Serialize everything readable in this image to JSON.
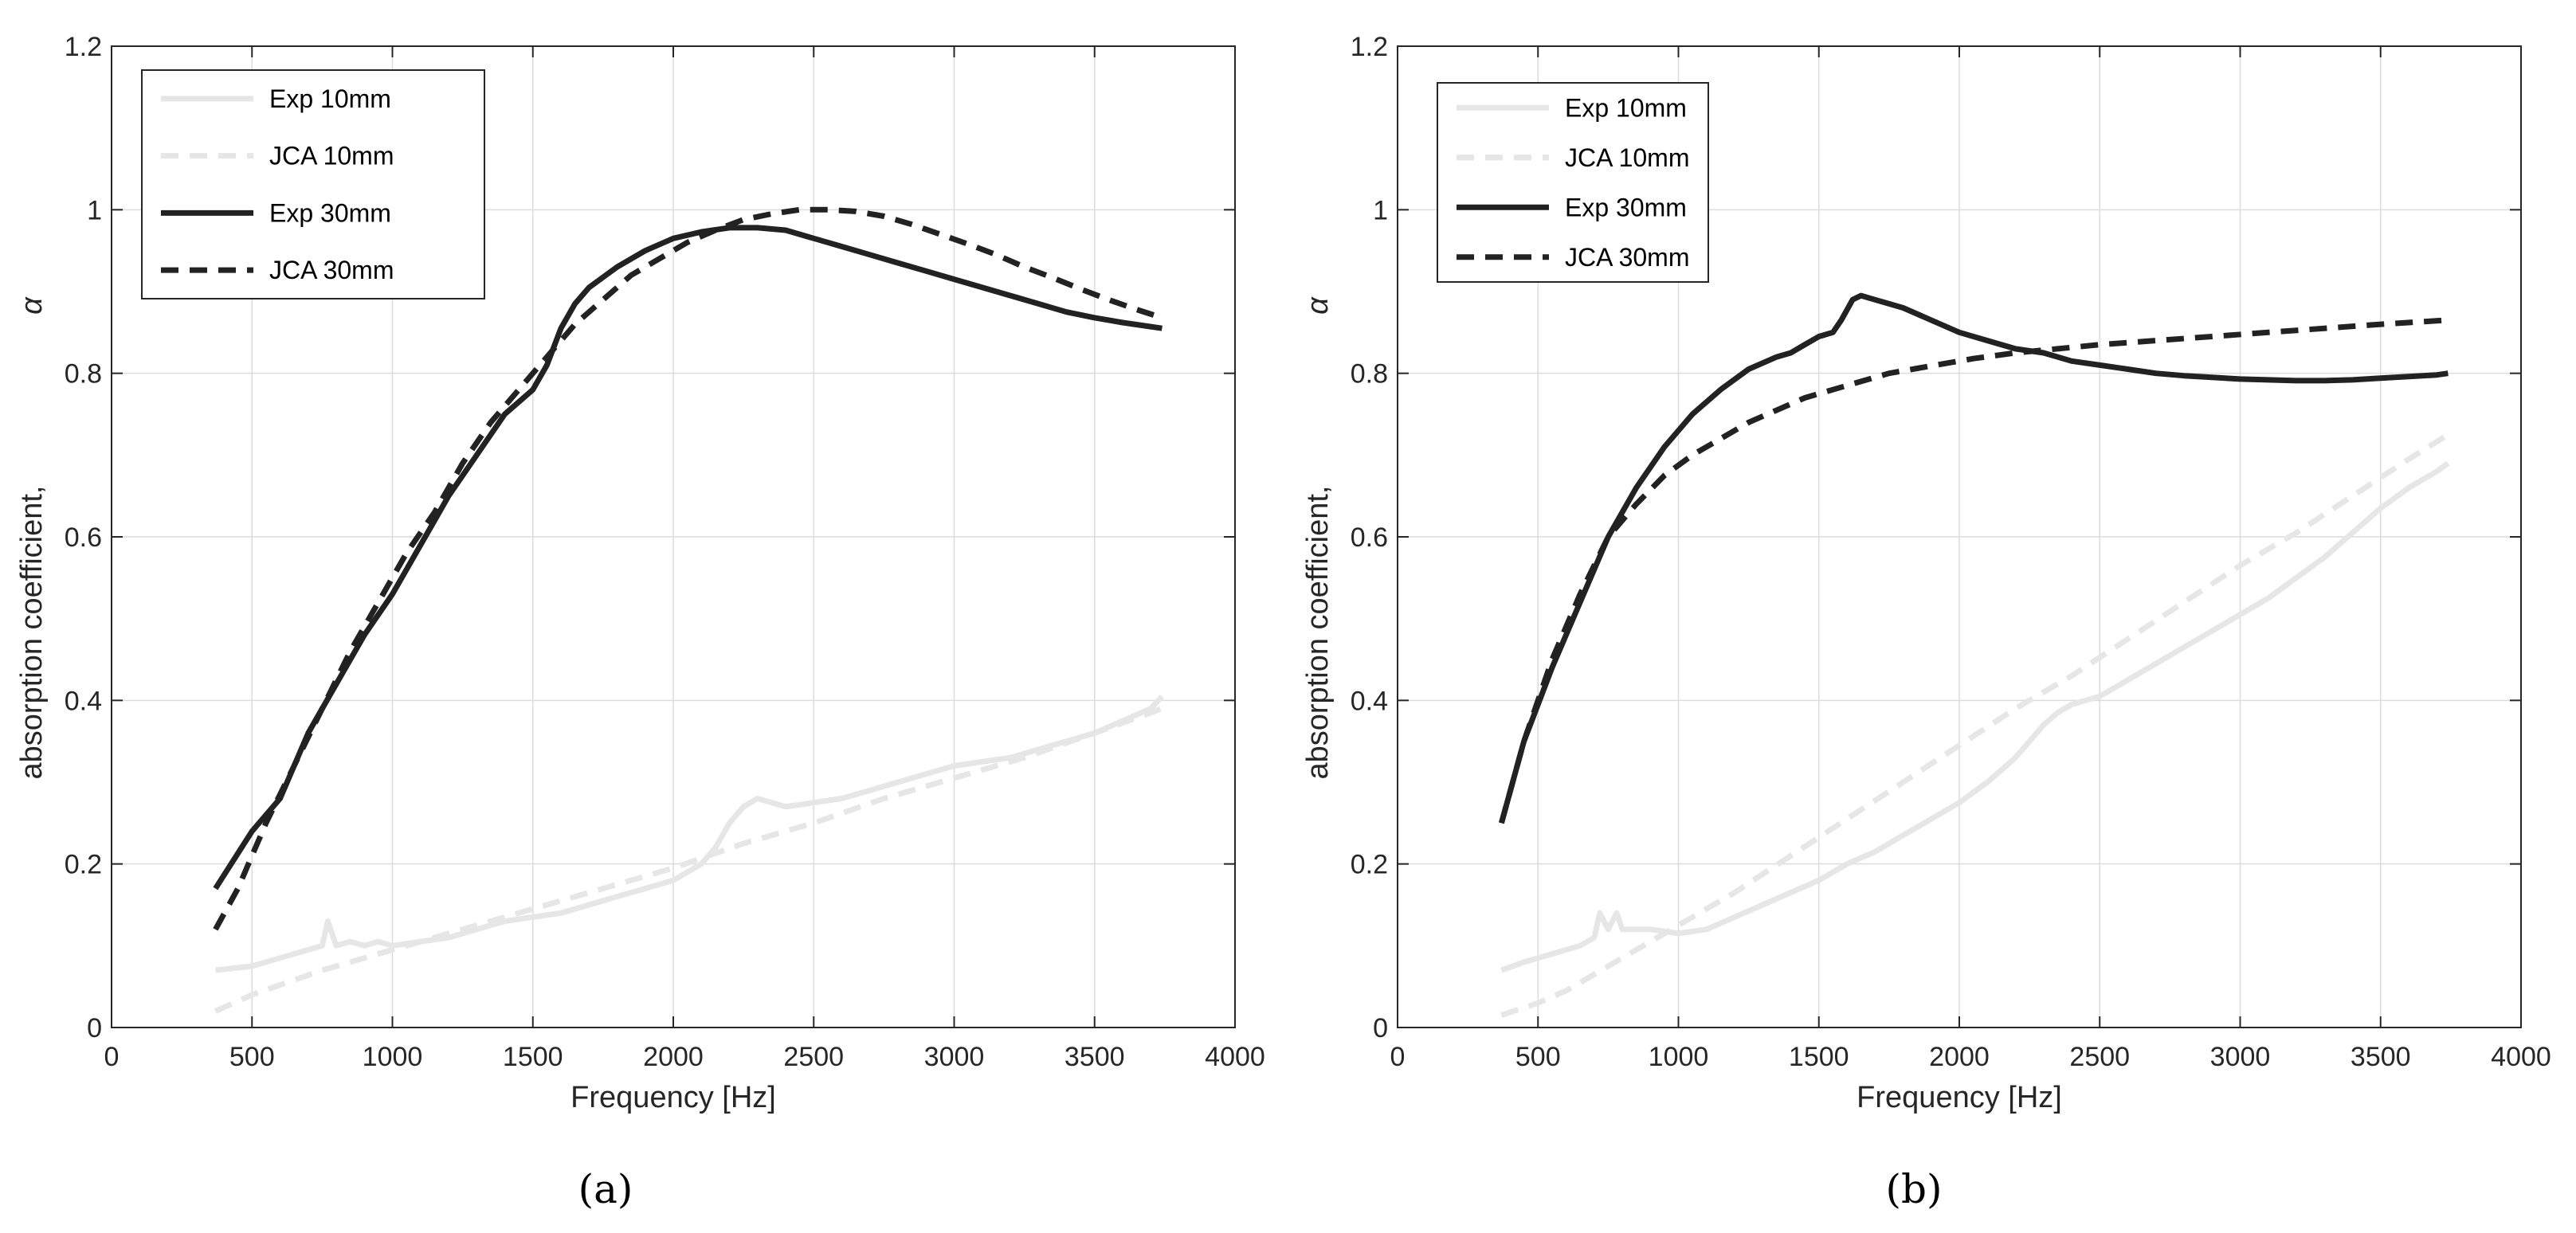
{
  "chart_data": [
    {
      "type": "line",
      "panel_label": "(a)",
      "xlabel": "Frequency [Hz]",
      "ylabel": "absorption coefficient,",
      "ylabel_symbol": "α",
      "xlim": [
        0,
        4000
      ],
      "ylim": [
        0,
        1.2
      ],
      "xticks": [
        0,
        500,
        1000,
        1500,
        2000,
        2500,
        3000,
        3500,
        4000
      ],
      "yticks": [
        0,
        0.2,
        0.4,
        0.6,
        0.8,
        1,
        1.2
      ],
      "xtick_labels": [
        "0",
        "500",
        "1000",
        "1500",
        "2000",
        "2500",
        "3000",
        "3500",
        "4000"
      ],
      "ytick_labels": [
        "0",
        "0.2",
        "0.4",
        "0.6",
        "0.8",
        "1",
        "1.2"
      ],
      "grid": true,
      "legend_position": "top-left",
      "series": [
        {
          "name": "Exp 10mm",
          "color": "#e6e6e6",
          "style": "solid",
          "x": [
            370,
            500,
            600,
            700,
            750,
            770,
            800,
            850,
            900,
            950,
            1000,
            1100,
            1200,
            1300,
            1400,
            1500,
            1600,
            1700,
            1800,
            1900,
            2000,
            2100,
            2150,
            2200,
            2250,
            2300,
            2350,
            2400,
            2500,
            2600,
            2700,
            2800,
            2900,
            3000,
            3100,
            3200,
            3300,
            3400,
            3500,
            3600,
            3700,
            3740
          ],
          "y": [
            0.07,
            0.075,
            0.085,
            0.095,
            0.1,
            0.13,
            0.1,
            0.105,
            0.1,
            0.105,
            0.1,
            0.105,
            0.11,
            0.12,
            0.13,
            0.135,
            0.14,
            0.15,
            0.16,
            0.17,
            0.18,
            0.2,
            0.22,
            0.25,
            0.27,
            0.28,
            0.275,
            0.27,
            0.275,
            0.28,
            0.29,
            0.3,
            0.31,
            0.32,
            0.325,
            0.33,
            0.34,
            0.35,
            0.36,
            0.375,
            0.39,
            0.405
          ]
        },
        {
          "name": "JCA 10mm",
          "color": "#e6e6e6",
          "style": "dashed",
          "x": [
            370,
            500,
            750,
            1000,
            1250,
            1500,
            1750,
            2000,
            2250,
            2500,
            2750,
            3000,
            3250,
            3500,
            3740
          ],
          "y": [
            0.02,
            0.04,
            0.07,
            0.095,
            0.12,
            0.145,
            0.17,
            0.195,
            0.225,
            0.25,
            0.28,
            0.305,
            0.33,
            0.36,
            0.39
          ]
        },
        {
          "name": "Exp 30mm",
          "color": "#222222",
          "style": "solid",
          "x": [
            370,
            500,
            600,
            700,
            800,
            900,
            1000,
            1100,
            1200,
            1300,
            1400,
            1500,
            1550,
            1600,
            1650,
            1700,
            1800,
            1900,
            2000,
            2100,
            2200,
            2300,
            2400,
            2500,
            2600,
            2700,
            2800,
            2900,
            3000,
            3100,
            3200,
            3300,
            3400,
            3500,
            3600,
            3700,
            3740
          ],
          "y": [
            0.17,
            0.24,
            0.28,
            0.36,
            0.42,
            0.48,
            0.53,
            0.59,
            0.65,
            0.7,
            0.75,
            0.78,
            0.81,
            0.855,
            0.885,
            0.905,
            0.93,
            0.95,
            0.965,
            0.973,
            0.978,
            0.978,
            0.975,
            0.965,
            0.955,
            0.945,
            0.935,
            0.925,
            0.915,
            0.905,
            0.895,
            0.885,
            0.875,
            0.868,
            0.862,
            0.857,
            0.855
          ]
        },
        {
          "name": "JCA 30mm",
          "color": "#222222",
          "style": "dashed",
          "x": [
            370,
            450,
            550,
            650,
            750,
            850,
            950,
            1050,
            1150,
            1250,
            1350,
            1450,
            1550,
            1650,
            1750,
            1850,
            1950,
            2050,
            2150,
            2250,
            2350,
            2450,
            2550,
            2650,
            2750,
            2850,
            2950,
            3050,
            3150,
            3250,
            3350,
            3450,
            3550,
            3650,
            3740
          ],
          "y": [
            0.12,
            0.17,
            0.25,
            0.32,
            0.39,
            0.46,
            0.52,
            0.58,
            0.63,
            0.69,
            0.74,
            0.78,
            0.82,
            0.86,
            0.89,
            0.92,
            0.94,
            0.96,
            0.975,
            0.988,
            0.995,
            1.0,
            1.0,
            0.998,
            0.992,
            0.982,
            0.97,
            0.958,
            0.945,
            0.93,
            0.917,
            0.903,
            0.89,
            0.878,
            0.868
          ]
        }
      ]
    },
    {
      "type": "line",
      "panel_label": "(b)",
      "xlabel": "Frequency [Hz]",
      "ylabel": "absorption coefficient,",
      "ylabel_symbol": "α",
      "xlim": [
        0,
        4000
      ],
      "ylim": [
        0,
        1.2
      ],
      "xticks": [
        0,
        500,
        1000,
        1500,
        2000,
        2500,
        3000,
        3500,
        4000
      ],
      "yticks": [
        0,
        0.2,
        0.4,
        0.6,
        0.8,
        1,
        1.2
      ],
      "xtick_labels": [
        "0",
        "500",
        "1000",
        "1500",
        "2000",
        "2500",
        "3000",
        "3500",
        "4000"
      ],
      "ytick_labels": [
        "0",
        "0.2",
        "0.4",
        "0.6",
        "0.8",
        "1",
        "1.2"
      ],
      "grid": true,
      "legend_position": "top-left",
      "series": [
        {
          "name": "Exp 10mm",
          "color": "#e6e6e6",
          "style": "solid",
          "x": [
            370,
            450,
            550,
            650,
            700,
            720,
            750,
            780,
            800,
            900,
            1000,
            1100,
            1200,
            1300,
            1400,
            1500,
            1600,
            1700,
            1800,
            1900,
            2000,
            2100,
            2200,
            2300,
            2350,
            2400,
            2500,
            2600,
            2700,
            2800,
            2900,
            3000,
            3100,
            3200,
            3300,
            3400,
            3500,
            3600,
            3700,
            3740
          ],
          "y": [
            0.07,
            0.08,
            0.09,
            0.1,
            0.11,
            0.14,
            0.12,
            0.14,
            0.12,
            0.12,
            0.115,
            0.12,
            0.135,
            0.15,
            0.165,
            0.18,
            0.2,
            0.215,
            0.235,
            0.255,
            0.275,
            0.3,
            0.33,
            0.37,
            0.385,
            0.395,
            0.405,
            0.425,
            0.445,
            0.465,
            0.485,
            0.505,
            0.525,
            0.55,
            0.575,
            0.605,
            0.635,
            0.66,
            0.68,
            0.69
          ]
        },
        {
          "name": "JCA 10mm",
          "color": "#e6e6e6",
          "style": "dashed",
          "x": [
            370,
            500,
            600,
            700,
            800,
            900,
            1000,
            1200,
            1400,
            1600,
            1800,
            2000,
            2200,
            2400,
            2600,
            2800,
            3000,
            3200,
            3400,
            3600,
            3740
          ],
          "y": [
            0.015,
            0.03,
            0.045,
            0.065,
            0.085,
            0.105,
            0.125,
            0.165,
            0.21,
            0.255,
            0.3,
            0.345,
            0.39,
            0.43,
            0.475,
            0.52,
            0.565,
            0.605,
            0.65,
            0.695,
            0.725
          ]
        },
        {
          "name": "Exp 30mm",
          "color": "#222222",
          "style": "solid",
          "x": [
            370,
            450,
            550,
            650,
            750,
            850,
            950,
            1050,
            1150,
            1250,
            1350,
            1400,
            1450,
            1500,
            1550,
            1580,
            1620,
            1650,
            1700,
            1750,
            1800,
            1900,
            2000,
            2100,
            2200,
            2300,
            2400,
            2500,
            2600,
            2700,
            2800,
            2900,
            3000,
            3100,
            3200,
            3300,
            3400,
            3500,
            3600,
            3700,
            3740
          ],
          "y": [
            0.25,
            0.35,
            0.44,
            0.52,
            0.6,
            0.66,
            0.71,
            0.75,
            0.78,
            0.805,
            0.82,
            0.825,
            0.835,
            0.845,
            0.85,
            0.865,
            0.89,
            0.895,
            0.89,
            0.885,
            0.88,
            0.865,
            0.85,
            0.84,
            0.83,
            0.825,
            0.815,
            0.81,
            0.805,
            0.8,
            0.797,
            0.795,
            0.793,
            0.792,
            0.791,
            0.791,
            0.792,
            0.794,
            0.796,
            0.798,
            0.8
          ]
        },
        {
          "name": "JCA 30mm",
          "color": "#222222",
          "style": "dashed",
          "x": [
            370,
            450,
            550,
            650,
            750,
            850,
            950,
            1050,
            1150,
            1250,
            1350,
            1450,
            1550,
            1650,
            1750,
            1850,
            1950,
            2050,
            2200,
            2350,
            2500,
            2700,
            2900,
            3100,
            3300,
            3500,
            3740
          ],
          "y": [
            0.25,
            0.35,
            0.45,
            0.53,
            0.6,
            0.64,
            0.675,
            0.7,
            0.72,
            0.74,
            0.755,
            0.77,
            0.78,
            0.79,
            0.8,
            0.806,
            0.812,
            0.818,
            0.825,
            0.83,
            0.835,
            0.84,
            0.845,
            0.85,
            0.855,
            0.86,
            0.865
          ]
        }
      ]
    }
  ]
}
